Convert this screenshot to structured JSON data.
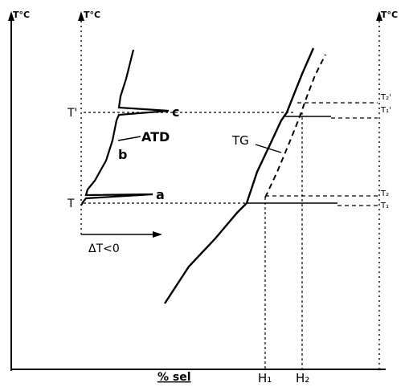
{
  "labels": {
    "axis_temp_left": "T°C",
    "axis_temp_inner": "T°C",
    "axis_temp_right": "T°C",
    "T_upper": "T'",
    "T_lower": "T",
    "point_c": "c",
    "point_a": "a",
    "point_b": "b",
    "atd": "ATD",
    "tg": "TG",
    "delta_t": "ΔT<0",
    "percent_salt": "% sel",
    "H1": "H₁",
    "H2": "H₂",
    "T2_prime": "T₂'",
    "T1_prime": "T₁'",
    "T2": "T₂",
    "T1": "T₁"
  },
  "colors": {
    "ink": "#000000",
    "background": "#ffffff"
  }
}
